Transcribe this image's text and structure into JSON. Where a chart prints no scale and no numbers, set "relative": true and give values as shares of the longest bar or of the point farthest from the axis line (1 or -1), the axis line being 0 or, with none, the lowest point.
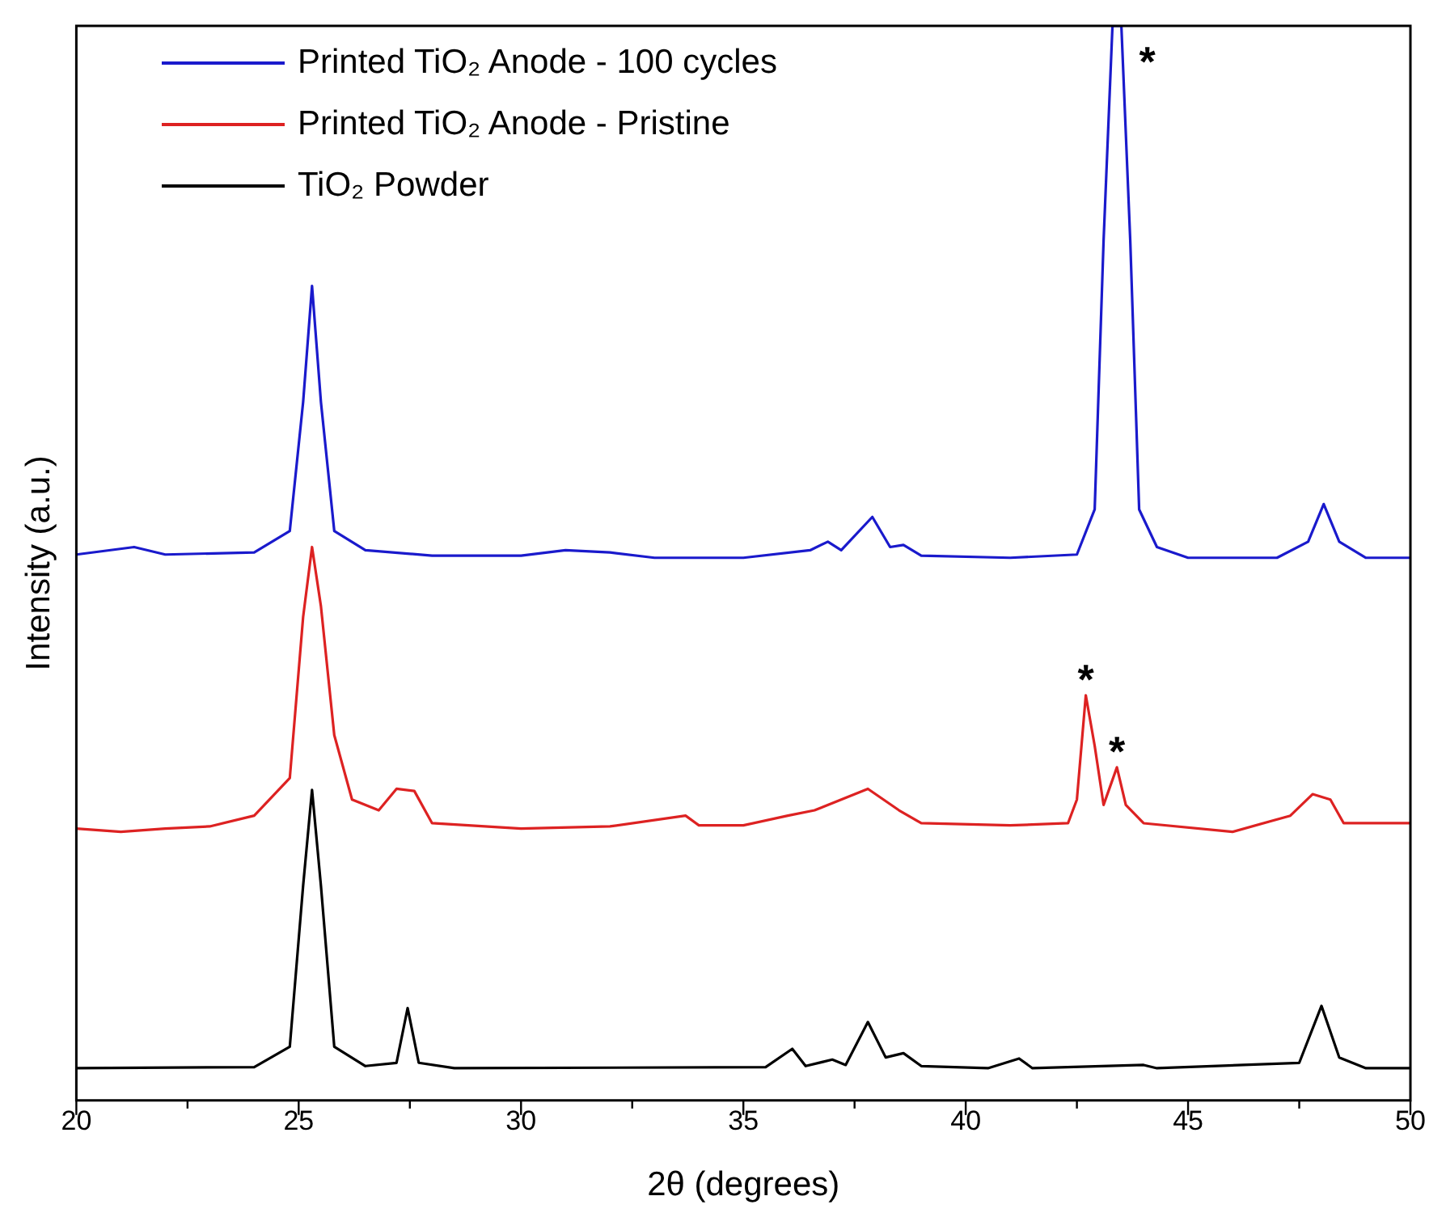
{
  "chart_data": {
    "type": "line",
    "relative": true,
    "xlabel": "2θ (degrees)",
    "ylabel": "Intensity (a.u.)",
    "xlim": [
      20,
      50
    ],
    "xticks": [
      20,
      {
        "value": 22.5,
        "label": null
      },
      25,
      {
        "value": 27.5,
        "label": null
      },
      30,
      {
        "value": 32.5,
        "label": null
      },
      35,
      {
        "value": 37.5,
        "label": null
      },
      40,
      {
        "value": 42.5,
        "label": null
      },
      45,
      {
        "value": 47.5,
        "label": null
      },
      50
    ],
    "tick_labels": "x",
    "grid": false,
    "legend": "top left",
    "marker": "none",
    "line_style": "solid",
    "series": [
      {
        "name": "Printed TiO₂ Anode - 100 cycles",
        "color": "#1a1acc",
        "x": [
          20,
          21.3,
          22,
          24,
          24.8,
          25.1,
          25.3,
          25.5,
          25.8,
          26.5,
          28,
          30,
          31,
          32,
          33,
          35,
          36.5,
          36.9,
          37.2,
          37.9,
          38.3,
          38.6,
          39,
          41,
          42.5,
          42.9,
          43.1,
          43.3,
          43.5,
          43.7,
          43.9,
          44.3,
          45,
          47,
          47.7,
          48.05,
          48.4,
          49,
          50
        ],
        "values": [
          0.508,
          0.515,
          0.508,
          0.51,
          0.53,
          0.65,
          0.758,
          0.65,
          0.53,
          0.512,
          0.507,
          0.507,
          0.512,
          0.51,
          0.505,
          0.505,
          0.512,
          0.52,
          0.512,
          0.543,
          0.515,
          0.517,
          0.507,
          0.505,
          0.508,
          0.55,
          0.8,
          1.0,
          1.0,
          0.8,
          0.55,
          0.515,
          0.505,
          0.505,
          0.52,
          0.555,
          0.52,
          0.505,
          0.505
        ]
      },
      {
        "name": "Printed TiO₂ Anode - Pristine",
        "color": "#dd2222",
        "x": [
          20,
          21,
          22,
          23,
          24,
          24.8,
          25.1,
          25.3,
          25.5,
          25.8,
          26.2,
          26.8,
          27.2,
          27.6,
          28,
          30,
          32,
          33.7,
          34,
          35,
          36,
          36.6,
          37.8,
          38.5,
          39,
          41,
          42.3,
          42.5,
          42.7,
          42.9,
          43.1,
          43.4,
          43.6,
          44,
          46,
          47.3,
          47.8,
          48.2,
          48.5,
          50
        ],
        "values": [
          0.253,
          0.25,
          0.253,
          0.255,
          0.265,
          0.3,
          0.45,
          0.515,
          0.46,
          0.34,
          0.28,
          0.27,
          0.29,
          0.288,
          0.258,
          0.253,
          0.255,
          0.265,
          0.256,
          0.256,
          0.265,
          0.27,
          0.29,
          0.27,
          0.258,
          0.256,
          0.258,
          0.28,
          0.377,
          0.33,
          0.275,
          0.31,
          0.275,
          0.258,
          0.25,
          0.265,
          0.285,
          0.28,
          0.258,
          0.258
        ]
      },
      {
        "name": "TiO₂ Powder",
        "color": "#000000",
        "x": [
          20,
          24,
          24.8,
          25.1,
          25.3,
          25.5,
          25.8,
          26.5,
          27.2,
          27.45,
          27.7,
          28.5,
          35.5,
          36.1,
          36.4,
          37,
          37.3,
          37.8,
          38.2,
          38.6,
          39,
          40.5,
          41.2,
          41.5,
          44,
          44.3,
          47.5,
          48,
          48.4,
          49,
          50
        ],
        "values": [
          0.03,
          0.031,
          0.05,
          0.2,
          0.289,
          0.2,
          0.05,
          0.032,
          0.035,
          0.086,
          0.035,
          0.03,
          0.031,
          0.048,
          0.032,
          0.038,
          0.033,
          0.073,
          0.04,
          0.044,
          0.032,
          0.03,
          0.039,
          0.03,
          0.033,
          0.03,
          0.035,
          0.088,
          0.04,
          0.03,
          0.03
        ]
      }
    ],
    "annotations": [
      {
        "text": "*",
        "x": 43.5,
        "y": 1.0
      },
      {
        "text": "*",
        "x": 42.7,
        "y": 0.377
      },
      {
        "text": "*",
        "x": 43.4,
        "y": 0.31
      }
    ]
  }
}
